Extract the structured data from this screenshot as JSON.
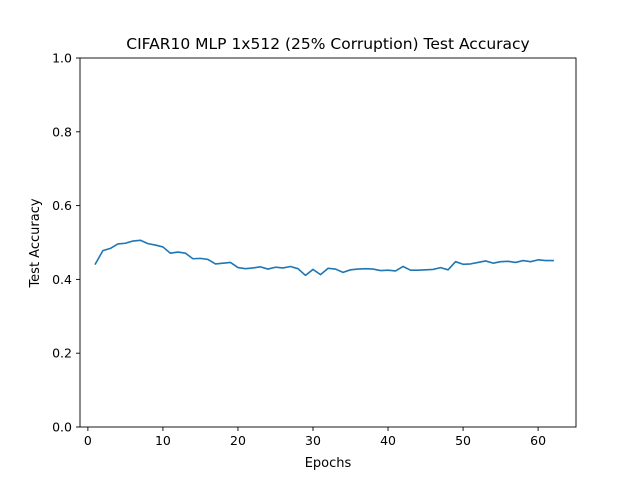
{
  "chart_data": {
    "type": "line",
    "title": "CIFAR10 MLP 1x512 (25% Corruption) Test Accuracy",
    "xlabel": "Epochs",
    "ylabel": "Test Accuracy",
    "xlim": [
      -1.05,
      65.05
    ],
    "ylim": [
      0.0,
      1.0
    ],
    "xticks": [
      0,
      10,
      20,
      30,
      40,
      50,
      60
    ],
    "yticks": [
      0.0,
      0.2,
      0.4,
      0.6,
      0.8,
      1.0
    ],
    "xtick_labels": [
      "0",
      "10",
      "20",
      "30",
      "40",
      "50",
      "60"
    ],
    "ytick_labels": [
      "0.0",
      "0.2",
      "0.4",
      "0.6",
      "0.8",
      "1.0"
    ],
    "grid": false,
    "series": [
      {
        "color": "#1f77b4",
        "x": [
          1,
          2,
          3,
          4,
          5,
          6,
          7,
          8,
          9,
          10,
          11,
          12,
          13,
          14,
          15,
          16,
          17,
          18,
          19,
          20,
          21,
          22,
          23,
          24,
          25,
          26,
          27,
          28,
          29,
          30,
          31,
          32,
          33,
          34,
          35,
          36,
          37,
          38,
          39,
          40,
          41,
          42,
          43,
          44,
          45,
          46,
          47,
          48,
          49,
          50,
          51,
          52,
          53,
          54,
          55,
          56,
          57,
          58,
          59,
          60,
          61,
          62
        ],
        "values": [
          0.442,
          0.478,
          0.484,
          0.496,
          0.498,
          0.504,
          0.506,
          0.497,
          0.493,
          0.488,
          0.471,
          0.474,
          0.471,
          0.456,
          0.457,
          0.454,
          0.442,
          0.444,
          0.446,
          0.432,
          0.429,
          0.431,
          0.434,
          0.428,
          0.433,
          0.431,
          0.435,
          0.429,
          0.411,
          0.427,
          0.413,
          0.43,
          0.428,
          0.419,
          0.426,
          0.428,
          0.429,
          0.428,
          0.424,
          0.425,
          0.423,
          0.435,
          0.425,
          0.425,
          0.426,
          0.427,
          0.432,
          0.426,
          0.448,
          0.441,
          0.442,
          0.446,
          0.45,
          0.444,
          0.448,
          0.449,
          0.446,
          0.451,
          0.448,
          0.453,
          0.451,
          0.451
        ]
      }
    ]
  }
}
